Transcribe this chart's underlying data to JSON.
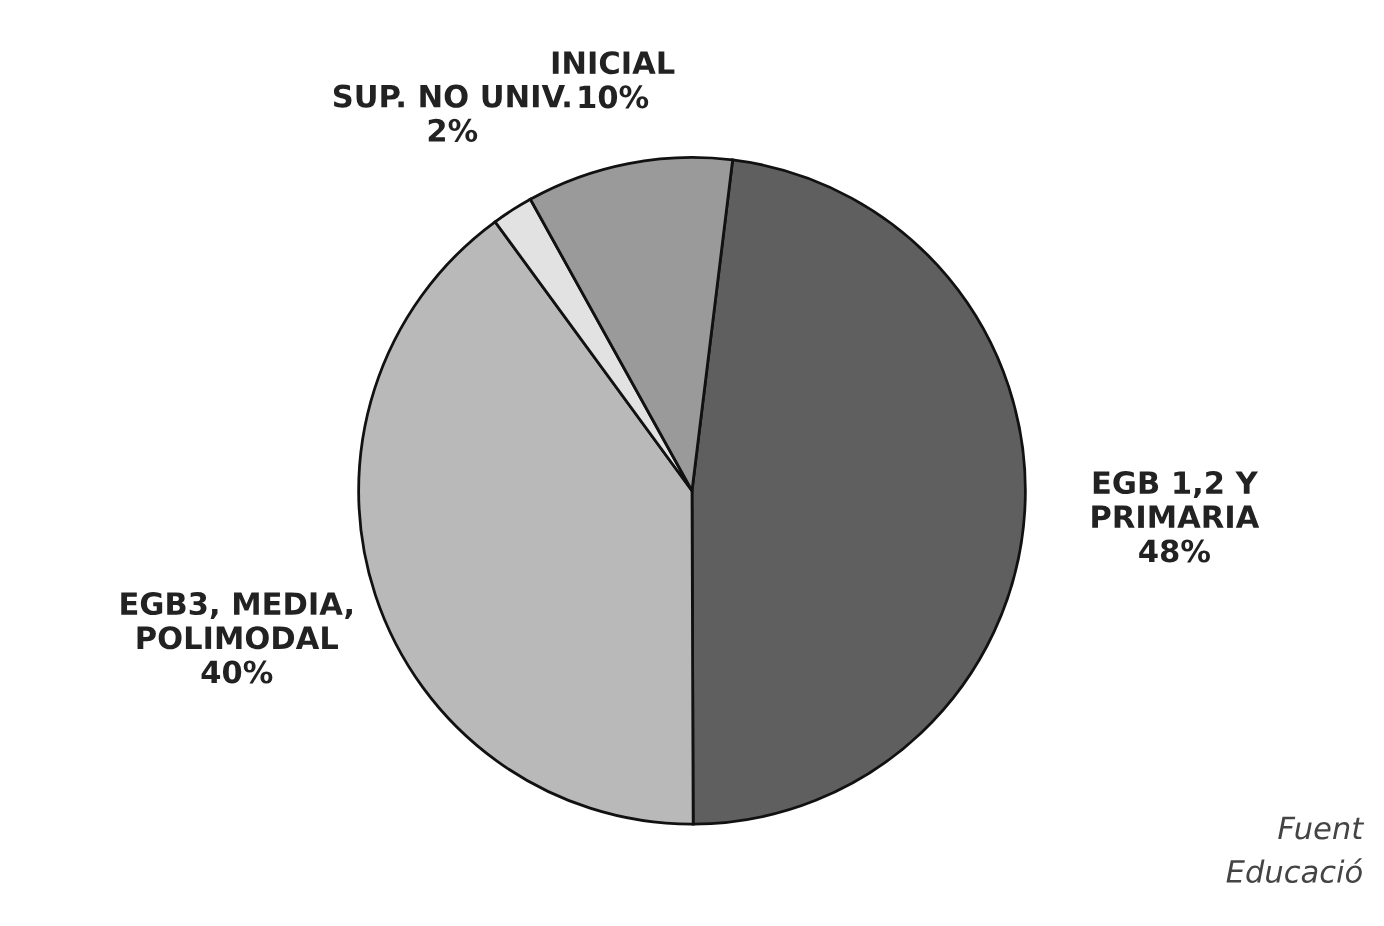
{
  "chart_data": {
    "type": "pie",
    "categories": [
      "EGB 1,2 Y\nPRIMARIA",
      "EGB3, MEDIA,\nPOLIMODAL",
      "SUP. NO UNIV.",
      "INICIAL"
    ],
    "values": [
      48,
      40,
      2,
      10
    ],
    "value_labels": [
      "48%",
      "40%",
      "2%",
      "10%"
    ],
    "colors": [
      "#5f5f5f",
      "#b9b9b9",
      "#e2e2e2",
      "#9a9a9a"
    ],
    "annotations": [
      "Fuent\nEducació"
    ]
  }
}
